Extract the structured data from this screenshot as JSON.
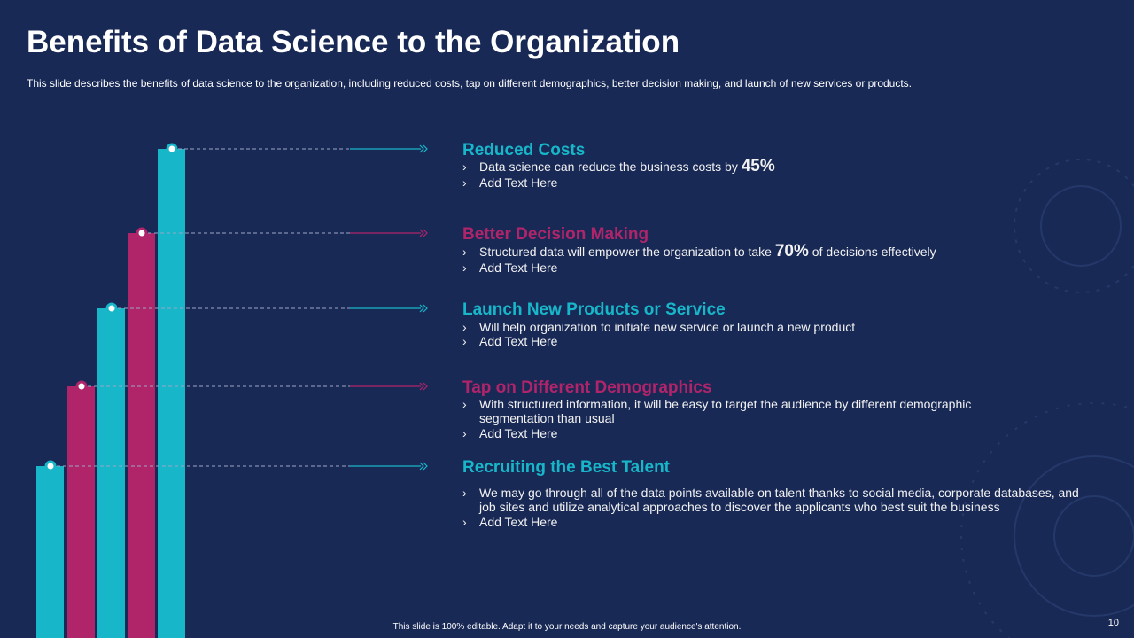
{
  "header": {
    "title": "Benefits of Data Science to the Organization",
    "subtitle": "This slide describes the benefits of data science to the organization, including reduced costs, tap on different  demographics, better decision making, and launch of new services or products."
  },
  "items": [
    {
      "heading": "Reduced Costs",
      "bullets": [
        {
          "before": "Data science can reduce the business costs by",
          "highlight": "45%"
        },
        "Add Text Here"
      ]
    },
    {
      "heading": "Better Decision Making",
      "bullets": [
        {
          "before": "Structured data will empower the organization to take",
          "highlight": "70%",
          "after": "of decisions effectively"
        },
        "Add Text Here"
      ]
    },
    {
      "heading": "Launch New Products or Service",
      "bullets": [
        "Will help organization to initiate new service or launch a new product",
        "Add Text Here"
      ]
    },
    {
      "heading": "Tap on Different Demographics",
      "bullets": [
        "With structured information, it will be easy to target the audience by different demographic segmentation than usual",
        "Add Text Here"
      ]
    },
    {
      "heading": "Recruiting the Best Talent",
      "bullets": [
        "We may go through all of the data points available on talent thanks to social media, corporate databases, and job sites and utilize analytical approaches to discover the applicants who best suit the business",
        "Add Text Here"
      ]
    }
  ],
  "footer": {
    "note": "This slide is 100% editable. Adapt it to your needs and capture your audience's attention.",
    "page": "10"
  }
}
